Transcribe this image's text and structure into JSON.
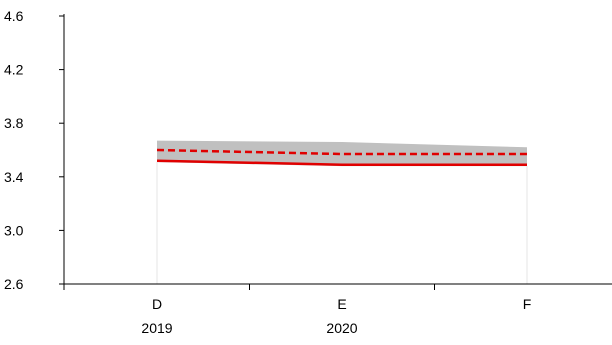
{
  "chart_data": {
    "type": "line",
    "title": "",
    "xlabel": "",
    "ylabel": "",
    "categories": [
      "D",
      "E",
      "F"
    ],
    "year_labels": [
      "2019",
      "2020",
      ""
    ],
    "y_ticks": [
      "4.6",
      "4.2",
      "3.8",
      "3.4",
      "3.0",
      "2.6"
    ],
    "ylim": [
      2.6,
      4.6
    ],
    "grid": false,
    "legend": "none",
    "series": [
      {
        "style": "solid",
        "color": "#e00000",
        "values": [
          3.52,
          3.49,
          3.49
        ]
      },
      {
        "style": "dashed",
        "color": "#e00000",
        "values": [
          3.6,
          3.57,
          3.57
        ]
      }
    ],
    "band": {
      "color": "#c0c0c0",
      "lower": [
        3.51,
        3.48,
        3.48
      ],
      "upper": [
        3.67,
        3.66,
        3.62
      ]
    }
  }
}
